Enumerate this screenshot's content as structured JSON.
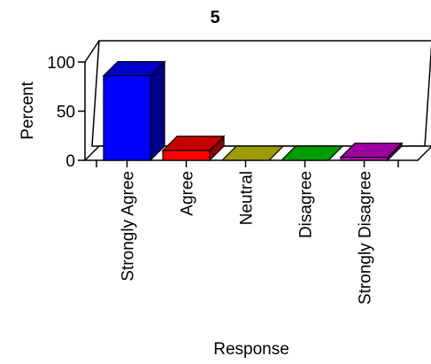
{
  "chart_data": {
    "type": "bar",
    "title": "5",
    "xlabel": "Response",
    "ylabel": "Percent",
    "ylim": [
      0,
      100
    ],
    "yticks": [
      0,
      50,
      100
    ],
    "categories": [
      "Strongly Agree",
      "Agree",
      "Neutral",
      "Disagree",
      "Strongly Disagree"
    ],
    "values": [
      86,
      10,
      0,
      0,
      3
    ],
    "colors": [
      "#0000ff",
      "#ff0000",
      "#c8c800",
      "#00c800",
      "#c800c8"
    ],
    "legend": "none",
    "grid": false,
    "style": "3d-bar"
  }
}
